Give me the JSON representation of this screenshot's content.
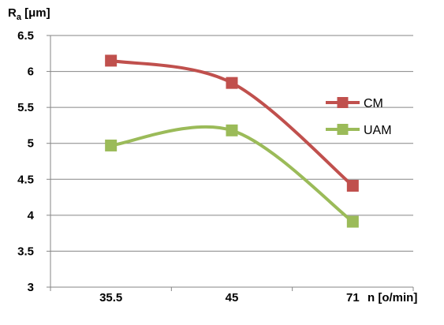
{
  "chart_data": {
    "type": "line",
    "categories": [
      "35.5",
      "45",
      "71"
    ],
    "series": [
      {
        "name": "CM",
        "values": [
          6.15,
          5.84,
          4.41
        ],
        "color": "#c0504d",
        "marker": "square"
      },
      {
        "name": "UAM",
        "values": [
          4.97,
          5.18,
          3.91
        ],
        "color": "#9bbb59",
        "marker": "square"
      }
    ],
    "ylabel": {
      "base": "R",
      "sub": "a",
      "unit": " [μm]"
    },
    "xlabel": "n [o/min]",
    "ylim": [
      3,
      6.5
    ],
    "yticks": [
      "3",
      "3.5",
      "4",
      "4.5",
      "5",
      "5.5",
      "6",
      "6.5"
    ],
    "smooth": true,
    "grid": "horizontal",
    "legend": "right"
  }
}
